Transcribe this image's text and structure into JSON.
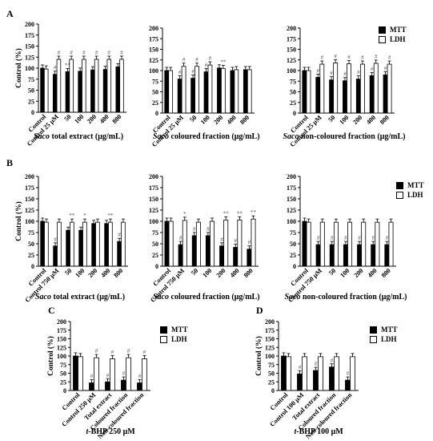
{
  "chart_data": [
    {
      "type": "bar",
      "id": "A1",
      "panel": "A",
      "categories": [
        "Control",
        "Control 25 μM",
        "50",
        "100",
        "200",
        "400",
        "800"
      ],
      "series": [
        {
          "name": "MTT",
          "values": [
            100,
            86,
            92,
            93,
            96,
            97,
            103
          ]
        },
        {
          "name": "LDH",
          "values": [
            98,
            120,
            120,
            120,
            120,
            120,
            120
          ]
        }
      ],
      "annotations": [
        [
          null,
          null
        ],
        [
          "#",
          "#"
        ],
        [
          "**",
          "#"
        ],
        [
          null,
          "#"
        ],
        [
          null,
          "#"
        ],
        [
          null,
          "#"
        ],
        [
          null,
          "#"
        ]
      ],
      "title_prefix": "Saco",
      "title_rest": " total extract (μg/mL)",
      "ylabel": "Control (%)",
      "ylim": [
        0,
        200
      ],
      "yticks": [
        0,
        25,
        50,
        75,
        100,
        125,
        150,
        175,
        200
      ]
    },
    {
      "type": "bar",
      "id": "A2",
      "panel": "A",
      "categories": [
        "Control",
        "Control 25 μM",
        "50",
        "100",
        "200",
        "400",
        "800"
      ],
      "series": [
        {
          "name": "MTT",
          "values": [
            100,
            80,
            82,
            97,
            106,
            100,
            102
          ]
        },
        {
          "name": "LDH",
          "values": [
            100,
            110,
            110,
            113,
            105,
            102,
            102
          ]
        }
      ],
      "annotations": [
        [
          null,
          null
        ],
        [
          "#",
          "#"
        ],
        [
          "#",
          "#"
        ],
        [
          "#",
          "#"
        ],
        [
          null,
          "**"
        ],
        [
          null,
          null
        ],
        [
          null,
          null
        ]
      ],
      "title_prefix": "Saco",
      "title_rest": " coloured fraction (μg/mL)",
      "ylabel": "",
      "ylim": [
        0,
        200
      ],
      "yticks": [
        0,
        25,
        50,
        75,
        100,
        125,
        150,
        175,
        200
      ]
    },
    {
      "type": "bar",
      "id": "A3",
      "panel": "A",
      "categories": [
        "Control",
        "Control 25 μM",
        "50",
        "100",
        "200",
        "400",
        "800"
      ],
      "series": [
        {
          "name": "MTT",
          "values": [
            100,
            84,
            78,
            76,
            80,
            88,
            90
          ]
        },
        {
          "name": "LDH",
          "values": [
            100,
            115,
            118,
            116,
            115,
            117,
            115
          ]
        }
      ],
      "annotations": [
        [
          null,
          null
        ],
        [
          "#",
          "#"
        ],
        [
          "#",
          "#"
        ],
        [
          "#",
          "#"
        ],
        [
          "#",
          "#"
        ],
        [
          "#",
          "#"
        ],
        [
          "#",
          "#"
        ]
      ],
      "title_prefix": "Saco",
      "title_rest": " non-coloured fraction (μg/mL)",
      "ylabel": "",
      "ylim": [
        0,
        200
      ],
      "yticks": [
        0,
        25,
        50,
        75,
        100,
        125,
        150,
        175,
        200
      ]
    },
    {
      "type": "bar",
      "id": "B1",
      "panel": "B",
      "categories": [
        "Control",
        "Control 750 μM",
        "50",
        "100",
        "200",
        "400",
        "800"
      ],
      "series": [
        {
          "name": "MTT",
          "values": [
            100,
            45,
            80,
            80,
            95,
            95,
            55
          ]
        },
        {
          "name": "LDH",
          "values": [
            98,
            98,
            98,
            98,
            98,
            98,
            98
          ]
        }
      ],
      "annotations": [
        [
          null,
          null
        ],
        [
          "#",
          null
        ],
        [
          null,
          "**"
        ],
        [
          null,
          "*"
        ],
        [
          null,
          null
        ],
        [
          null,
          "**"
        ],
        [
          "#",
          null
        ]
      ],
      "title_prefix": "Saco",
      "title_rest": " total extract (μg/mL)",
      "ylabel": "Control (%)",
      "ylim": [
        0,
        200
      ],
      "yticks": [
        0,
        25,
        50,
        75,
        100,
        125,
        150,
        175,
        200
      ]
    },
    {
      "type": "bar",
      "id": "B2",
      "panel": "B",
      "categories": [
        "Control",
        "Control 750 μM",
        "50",
        "100",
        "200",
        "400",
        "800"
      ],
      "series": [
        {
          "name": "MTT",
          "values": [
            100,
            48,
            68,
            68,
            45,
            42,
            38
          ]
        },
        {
          "name": "LDH",
          "values": [
            100,
            102,
            98,
            100,
            103,
            103,
            105
          ]
        }
      ],
      "annotations": [
        [
          null,
          null
        ],
        [
          "#",
          "*"
        ],
        [
          "#",
          null
        ],
        [
          "#",
          null
        ],
        [
          "#",
          "**"
        ],
        [
          "#",
          "**"
        ],
        [
          "#",
          "**"
        ]
      ],
      "title_prefix": "Saco",
      "title_rest": " coloured fraction (μg/mL)",
      "ylabel": "",
      "ylim": [
        0,
        200
      ],
      "yticks": [
        0,
        25,
        50,
        75,
        100,
        125,
        150,
        175,
        200
      ]
    },
    {
      "type": "bar",
      "id": "B3",
      "panel": "B",
      "categories": [
        "Control",
        "Control 750 μM",
        "50",
        "100",
        "200",
        "400",
        "800"
      ],
      "series": [
        {
          "name": "MTT",
          "values": [
            100,
            48,
            48,
            48,
            48,
            48,
            48
          ]
        },
        {
          "name": "LDH",
          "values": [
            98,
            98,
            98,
            98,
            98,
            98,
            98
          ]
        }
      ],
      "annotations": [
        [
          null,
          null
        ],
        [
          "#",
          null
        ],
        [
          "#",
          null
        ],
        [
          "#",
          null
        ],
        [
          "#",
          null
        ],
        [
          "#",
          null
        ],
        [
          "#",
          null
        ]
      ],
      "title_prefix": "Saco",
      "title_rest": " non-coloured fraction (μg/mL)",
      "ylabel": "",
      "ylim": [
        0,
        200
      ],
      "yticks": [
        0,
        25,
        50,
        75,
        100,
        125,
        150,
        175,
        200
      ]
    },
    {
      "type": "bar",
      "id": "C",
      "panel": "C",
      "categories": [
        "Control",
        "Control 250 μM",
        "Total extract",
        "Coloured fraction",
        "Non-coloured fraction"
      ],
      "series": [
        {
          "name": "MTT",
          "values": [
            100,
            22,
            25,
            30,
            22
          ]
        },
        {
          "name": "LDH",
          "values": [
            98,
            95,
            92,
            95,
            92
          ]
        }
      ],
      "annotations": [
        [
          null,
          null
        ],
        [
          "#",
          "#"
        ],
        [
          "#",
          "#"
        ],
        [
          "#",
          "#"
        ],
        [
          "#",
          "#"
        ]
      ],
      "title_prefix": "t",
      "title_rest": "-BHP 250 μM",
      "ylabel": "Control (%)",
      "ylim": [
        0,
        200
      ],
      "yticks": [
        0,
        25,
        50,
        75,
        100,
        125,
        150,
        175,
        200
      ]
    },
    {
      "type": "bar",
      "id": "D",
      "panel": "D",
      "categories": [
        "Control",
        "Control 100 μM",
        "Total extract",
        "Coloured fraction",
        "Non-coloured fraction"
      ],
      "series": [
        {
          "name": "MTT",
          "values": [
            100,
            48,
            58,
            68,
            30
          ]
        },
        {
          "name": "LDH",
          "values": [
            98,
            98,
            98,
            98,
            98
          ]
        }
      ],
      "annotations": [
        [
          null,
          null
        ],
        [
          "#",
          null
        ],
        [
          "#",
          null
        ],
        [
          "#",
          null
        ],
        [
          "#",
          null
        ]
      ],
      "title_prefix": "t",
      "title_rest": "-BHP 100 μM",
      "ylabel": "Control (%)",
      "ylim": [
        0,
        200
      ],
      "yticks": [
        0,
        25,
        50,
        75,
        100,
        125,
        150,
        175,
        200
      ]
    }
  ],
  "panel_letters": {
    "A": "A",
    "B": "B",
    "C": "C",
    "D": "D"
  },
  "legend_A": {
    "mtt": "MTT",
    "ldh": "LDH"
  },
  "legend_B": {
    "mtt": "MTT",
    "ldh": "LDH"
  },
  "legend_C": {
    "mtt": "MTT",
    "ldh": "LDH"
  },
  "legend_D": {
    "mtt": "MTT",
    "ldh": "LDH"
  },
  "colors": {
    "mtt": "#000000",
    "ldh": "#ffffff",
    "axis": "#000000",
    "annotation": "#555555"
  }
}
